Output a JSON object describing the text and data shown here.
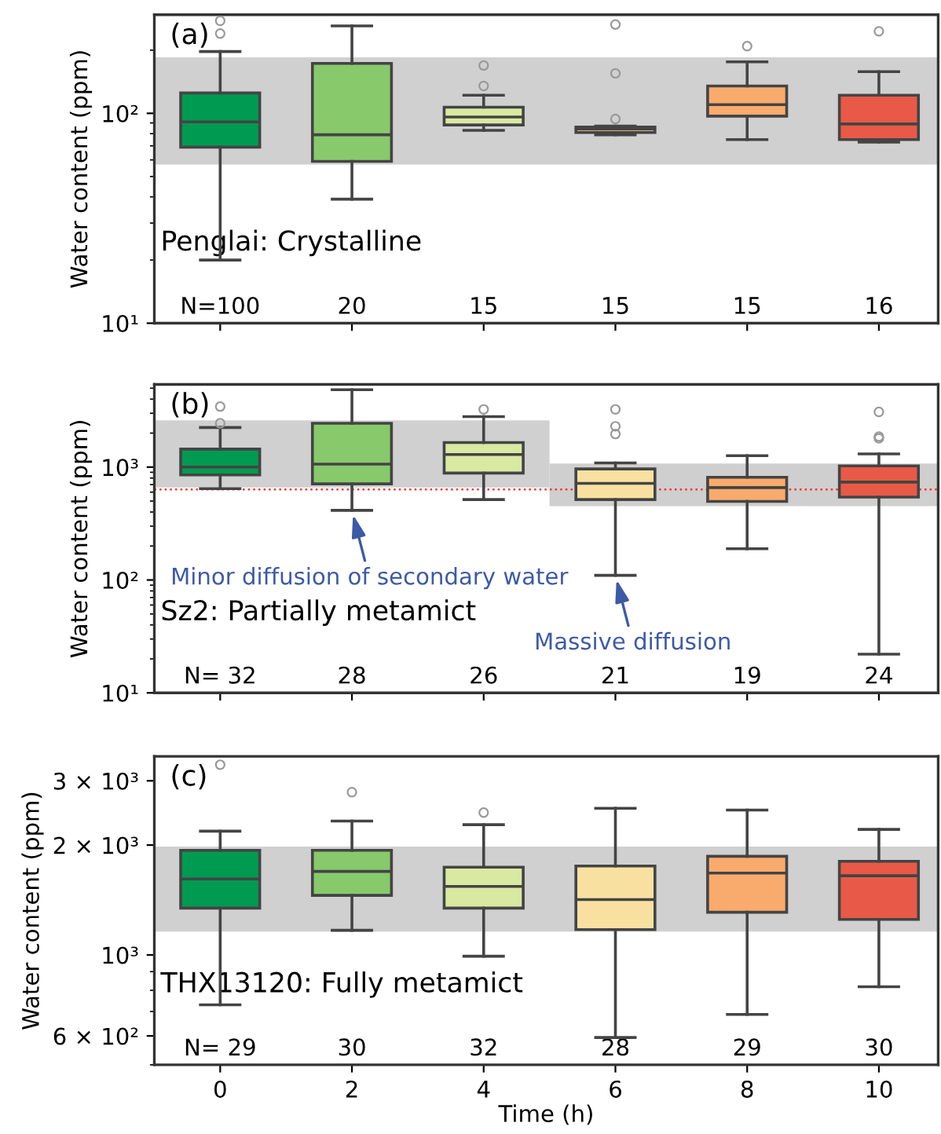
{
  "chart_data": [
    {
      "type": "box",
      "title": "(a)",
      "ylabel": "Water content (ppm)",
      "tick_labels": "y",
      "log": "y",
      "x": [
        0,
        2,
        4,
        6,
        8,
        10
      ],
      "xlim": [
        -1,
        10.9
      ],
      "xticks": [
        0,
        2,
        4,
        6,
        8,
        10
      ],
      "ylim": [
        10,
        295
      ],
      "yticks": [
        {
          "value": 10,
          "label": "10¹"
        },
        {
          "value": 100,
          "label": "10²"
        }
      ],
      "colors": [
        "#009a51",
        "#88c96c",
        "#d9e9a1",
        "#f8e1a0",
        "#f9ab6d",
        "#e85a47"
      ],
      "boxes": [
        {
          "low": 20,
          "q1": 69,
          "median": 91,
          "q3": 125,
          "high": 197,
          "outliers": [
            276,
            240
          ]
        },
        {
          "low": 39,
          "q1": 59,
          "median": 79,
          "q3": 173,
          "high": 261
        },
        {
          "low": 83,
          "q1": 88,
          "median": 96,
          "q3": 107,
          "high": 122,
          "outliers": [
            169,
            135
          ]
        },
        {
          "low": 79,
          "q1": 81,
          "median": 84,
          "q3": 86,
          "high": 87,
          "outliers": [
            265,
            155,
            94
          ]
        },
        {
          "low": 75,
          "q1": 97,
          "median": 110,
          "q3": 135,
          "high": 176,
          "outliers": [
            209
          ]
        },
        {
          "low": 73,
          "q1": 75,
          "median": 89,
          "q3": 122,
          "high": 158,
          "outliers": [
            246
          ]
        }
      ],
      "bands": [
        {
          "axis": "y",
          "from": 57,
          "to": 185,
          "color": "#d0d0d0"
        }
      ],
      "annotations": [
        "Penglai: Crystalline",
        "N=100",
        "20",
        "15",
        "15",
        "15",
        "16"
      ]
    },
    {
      "type": "box",
      "title": "(b)",
      "ylabel": "Water content (ppm)",
      "tick_labels": "y",
      "log": "y",
      "x": [
        0,
        2,
        4,
        6,
        8,
        10
      ],
      "xlim": [
        -1,
        10.9
      ],
      "xticks": [
        0,
        2,
        4,
        6,
        8,
        10
      ],
      "ylim": [
        10,
        5400
      ],
      "yticks": [
        {
          "value": 10,
          "label": "10¹"
        },
        {
          "value": 100,
          "label": "10²"
        },
        {
          "value": 1000,
          "label": "10³"
        }
      ],
      "colors": [
        "#009a51",
        "#88c96c",
        "#d9e9a1",
        "#f8e1a0",
        "#f9ab6d",
        "#e85a47"
      ],
      "boxes": [
        {
          "low": 644,
          "q1": 853,
          "median": 1000,
          "q3": 1444,
          "high": 2244,
          "outliers": [
            3440,
            2445
          ]
        },
        {
          "low": 414,
          "q1": 710,
          "median": 1063,
          "q3": 2445,
          "high": 4850
        },
        {
          "low": 516,
          "q1": 885,
          "median": 1293,
          "q3": 1650,
          "high": 2800,
          "outliers": [
            3245
          ]
        },
        {
          "low": 110,
          "q1": 516,
          "median": 718,
          "q3": 964,
          "high": 1089,
          "outliers": [
            3245,
            2300,
            1963
          ]
        },
        {
          "low": 189,
          "q1": 497,
          "median": 659,
          "q3": 813,
          "high": 1262
        },
        {
          "low": 22,
          "q1": 542,
          "median": 736,
          "q3": 1025,
          "high": 1309,
          "outliers": [
            3084,
            1866,
            1800
          ]
        }
      ],
      "series": [
        {
          "type": "line",
          "color": "#d0d0d0",
          "x": [
            -1,
            5
          ],
          "values": [
            null,
            null
          ],
          "lower": [
            659,
            659
          ],
          "upper": [
            2600,
            2600
          ]
        },
        {
          "type": "line",
          "color": "#cfcfcf",
          "x": [
            5,
            10.9
          ],
          "values": [
            null,
            null
          ],
          "lower": [
            451,
            451
          ],
          "upper": [
            1076,
            1076
          ]
        }
      ],
      "ref_lines": [
        {
          "axis": "y",
          "value": 635,
          "color": "#ff3030",
          "line_style": "dotted"
        }
      ],
      "annotations": [
        "Sz2: Partially metamict",
        "N= 32",
        "28",
        "26",
        "21",
        "19",
        "24",
        {
          "text": "Minor diffusion of secondary water",
          "x": 2,
          "y": 414
        },
        {
          "text": "Massive diffusion",
          "x": 6,
          "y": 110
        }
      ]
    },
    {
      "type": "box",
      "title": "(c)",
      "ylabel": "Water content (ppm)",
      "xlabel": "Time (h)",
      "log": "y",
      "x": [
        0,
        2,
        4,
        6,
        8,
        10
      ],
      "xlim": [
        -1,
        10.9
      ],
      "xticks": [
        0,
        2,
        4,
        6,
        8,
        10
      ],
      "ylim": [
        500,
        3500
      ],
      "yticks": [
        {
          "value": 600,
          "label": "6 × 10²"
        },
        {
          "value": 1000,
          "label": "10³"
        },
        {
          "value": 2000,
          "label": "2 × 10³"
        },
        {
          "value": 3000,
          "label": "3 × 10³"
        }
      ],
      "colors": [
        "#009a51",
        "#88c96c",
        "#d9e9a1",
        "#f8e1a0",
        "#f9ab6d",
        "#e85a47"
      ],
      "boxes": [
        {
          "low": 730,
          "q1": 1344,
          "median": 1615,
          "q3": 1935,
          "high": 2183,
          "outliers": [
            3320
          ]
        },
        {
          "low": 1168,
          "q1": 1456,
          "median": 1694,
          "q3": 1935,
          "high": 2328,
          "outliers": [
            2792
          ]
        },
        {
          "low": 992,
          "q1": 1344,
          "median": 1541,
          "q3": 1740,
          "high": 2275,
          "outliers": [
            2455
          ]
        },
        {
          "low": 594,
          "q1": 1173,
          "median": 1418,
          "q3": 1753,
          "high": 2523
        },
        {
          "low": 687,
          "q1": 1309,
          "median": 1676,
          "q3": 1863,
          "high": 2495
        },
        {
          "low": 818,
          "q1": 1251,
          "median": 1648,
          "q3": 1806,
          "high": 2208
        }
      ],
      "bands": [
        {
          "axis": "y",
          "from": 1159,
          "to": 1981,
          "color": "#d0d0d0"
        }
      ],
      "annotations": [
        "THX13120: Fully metamict",
        "N= 29",
        "30",
        "32",
        "28",
        "29",
        "30"
      ]
    }
  ]
}
